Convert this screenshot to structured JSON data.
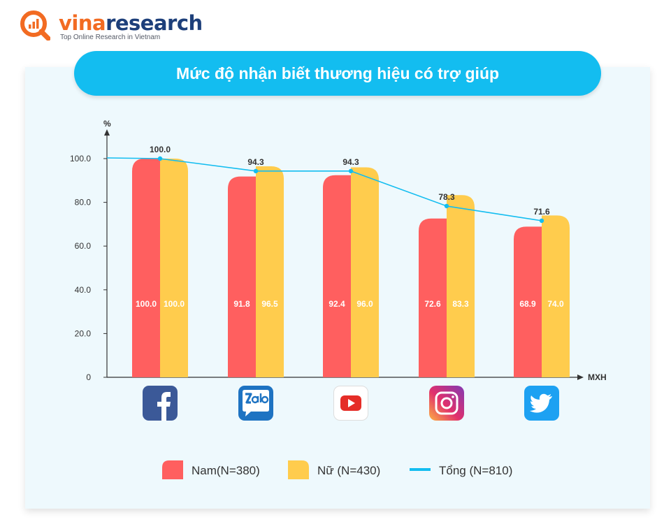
{
  "logo": {
    "brand_part1": "vina",
    "brand_part2": "research",
    "tagline": "Top Online Research in Vietnam"
  },
  "chart_data": {
    "type": "bar",
    "title": "Mức độ nhận biết thương hiệu có trợ giúp",
    "ylabel": "%",
    "xlabel": "MXH",
    "ylim": [
      0,
      100
    ],
    "yticks": [
      "0",
      "20.0",
      "40.0",
      "60.0",
      "80.0",
      "100.0"
    ],
    "categories": [
      "Facebook",
      "Zalo",
      "YouTube",
      "Instagram",
      "Twitter"
    ],
    "category_icons": [
      "facebook-icon",
      "zalo-icon",
      "youtube-icon",
      "instagram-icon",
      "twitter-icon"
    ],
    "series": [
      {
        "name": "Nam(N=380)",
        "type": "bar",
        "color": "#ff5f5f",
        "values": [
          100.0,
          91.8,
          92.4,
          72.6,
          68.9
        ],
        "labels": [
          "100.0",
          "91.8",
          "92.4",
          "72.6",
          "68.9"
        ]
      },
      {
        "name": "Nữ (N=430)",
        "type": "bar",
        "color": "#ffcc4d",
        "values": [
          100.0,
          96.5,
          96.0,
          83.3,
          74.0
        ],
        "labels": [
          "100.0",
          "96.5",
          "96.0",
          "83.3",
          "74.0"
        ]
      },
      {
        "name": "Tổng (N=810)",
        "type": "line",
        "color": "#13bdf0",
        "values": [
          100.0,
          94.3,
          94.3,
          78.3,
          71.6
        ],
        "labels": [
          "100.0",
          "94.3",
          "94.3",
          "78.3",
          "71.6"
        ]
      }
    ],
    "legend_position": "bottom",
    "grid": false
  }
}
